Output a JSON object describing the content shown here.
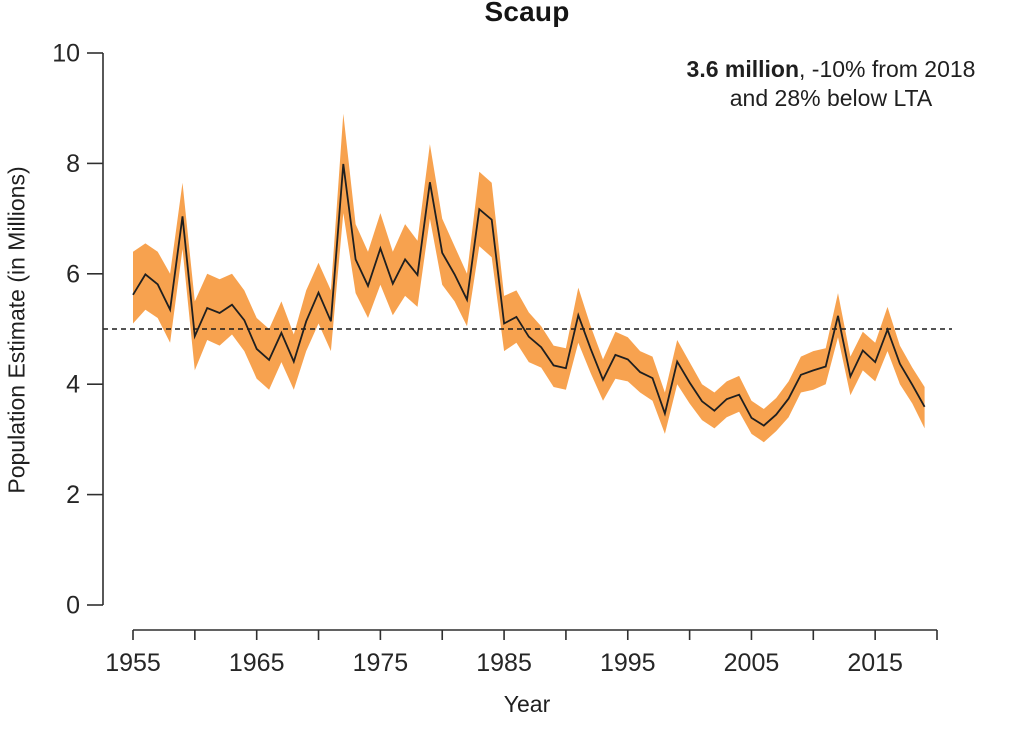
{
  "title": "Scaup",
  "annotation": {
    "value_bold": "3.6 million",
    "value_rest": ", -10% from 2018",
    "line2": "and 28% below LTA"
  },
  "axes": {
    "y_label": "Population Estimate (in Millions)",
    "x_label": "Year"
  },
  "chart_data": {
    "type": "line",
    "title": "Scaup",
    "xlabel": "Year",
    "ylabel": "Population Estimate (in Millions)",
    "xlim": [
      1955,
      2020
    ],
    "ylim": [
      0,
      10
    ],
    "grid": false,
    "legend": false,
    "y_ticks": [
      0,
      2,
      4,
      6,
      8,
      10
    ],
    "x_ticks": [
      1955,
      1960,
      1965,
      1970,
      1975,
      1980,
      1985,
      1990,
      1995,
      2000,
      2005,
      2010,
      2015,
      2020
    ],
    "x_labeled_ticks": [
      1955,
      1965,
      1975,
      1985,
      1995,
      2005,
      2015
    ],
    "reference_line": {
      "value": 5.0,
      "style": "dashed",
      "meaning": "LTA (long-term average)"
    },
    "colors": {
      "band": "#F7A24F",
      "line": "#1F1F1F",
      "axis": "#2F2F2F",
      "text": "#262626"
    },
    "years": [
      1955,
      1956,
      1957,
      1958,
      1959,
      1960,
      1961,
      1962,
      1963,
      1964,
      1965,
      1966,
      1967,
      1968,
      1969,
      1970,
      1971,
      1972,
      1973,
      1974,
      1975,
      1976,
      1977,
      1978,
      1979,
      1980,
      1981,
      1982,
      1983,
      1984,
      1985,
      1986,
      1987,
      1988,
      1989,
      1990,
      1991,
      1992,
      1993,
      1994,
      1995,
      1996,
      1997,
      1998,
      1999,
      2000,
      2001,
      2002,
      2003,
      2004,
      2005,
      2006,
      2007,
      2008,
      2009,
      2010,
      2011,
      2012,
      2013,
      2014,
      2015,
      2016,
      2017,
      2018,
      2019
    ],
    "series": [
      {
        "name": "Population estimate",
        "values": [
          5.62,
          5.99,
          5.81,
          5.35,
          7.04,
          4.87,
          5.38,
          5.29,
          5.44,
          5.16,
          4.64,
          4.44,
          4.93,
          4.41,
          5.14,
          5.66,
          5.14,
          7.99,
          6.26,
          5.78,
          6.46,
          5.82,
          6.26,
          5.98,
          7.66,
          6.38,
          5.99,
          5.53,
          7.17,
          6.98,
          5.1,
          5.22,
          4.86,
          4.67,
          4.34,
          4.29,
          5.25,
          4.64,
          4.08,
          4.53,
          4.45,
          4.22,
          4.11,
          3.47,
          4.41,
          4.03,
          3.69,
          3.52,
          3.73,
          3.81,
          3.39,
          3.25,
          3.45,
          3.74,
          4.17,
          4.25,
          4.32,
          5.24,
          4.14,
          4.61,
          4.4,
          4.99,
          4.37,
          3.99,
          3.59
        ]
      }
    ],
    "band": {
      "name": "Confidence band",
      "lo": [
        5.1,
        5.35,
        5.2,
        4.75,
        6.45,
        4.25,
        4.8,
        4.7,
        4.9,
        4.6,
        4.1,
        3.9,
        4.4,
        3.9,
        4.6,
        5.1,
        4.6,
        7.1,
        5.65,
        5.2,
        5.8,
        5.25,
        5.6,
        5.4,
        7.0,
        5.8,
        5.5,
        5.05,
        6.5,
        6.3,
        4.6,
        4.75,
        4.4,
        4.3,
        3.95,
        3.9,
        4.75,
        4.2,
        3.7,
        4.1,
        4.05,
        3.85,
        3.7,
        3.1,
        4.0,
        3.65,
        3.35,
        3.2,
        3.4,
        3.5,
        3.1,
        2.95,
        3.15,
        3.4,
        3.85,
        3.9,
        4.0,
        4.85,
        3.8,
        4.25,
        4.05,
        4.6,
        4.0,
        3.65,
        3.2
      ],
      "hi": [
        6.4,
        6.55,
        6.4,
        6.0,
        7.65,
        5.5,
        6.0,
        5.9,
        6.0,
        5.7,
        5.2,
        5.0,
        5.5,
        4.9,
        5.7,
        6.2,
        5.7,
        8.9,
        6.9,
        6.4,
        7.1,
        6.4,
        6.9,
        6.6,
        8.35,
        7.0,
        6.5,
        6.0,
        7.85,
        7.65,
        5.6,
        5.7,
        5.3,
        5.05,
        4.7,
        4.65,
        5.75,
        5.05,
        4.45,
        4.95,
        4.85,
        4.6,
        4.5,
        3.85,
        4.8,
        4.4,
        4.0,
        3.85,
        4.05,
        4.15,
        3.7,
        3.55,
        3.75,
        4.05,
        4.5,
        4.6,
        4.65,
        5.65,
        4.5,
        4.95,
        4.75,
        5.4,
        4.7,
        4.3,
        3.95
      ]
    }
  }
}
